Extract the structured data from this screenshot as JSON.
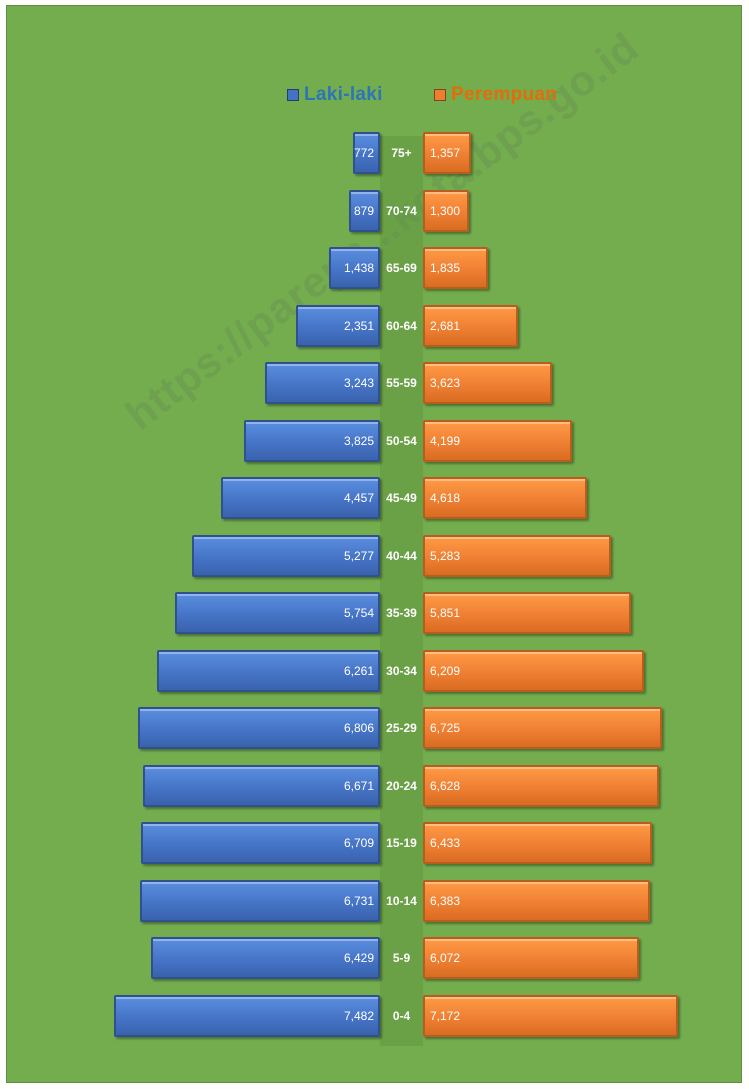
{
  "legend": {
    "male_label": "Laki-laki",
    "female_label": "Perempuan",
    "male_color": "#4472c4",
    "female_color": "#ed7d31",
    "male_text_color": "#2e75b6",
    "female_text_color": "#e46c0a"
  },
  "watermark": "https://parepa...kota.bps.go.id",
  "chart_data": {
    "type": "bar",
    "orientation": "horizontal",
    "style": "population-pyramid",
    "categories": [
      "75+",
      "70-74",
      "65-69",
      "60-64",
      "55-59",
      "50-54",
      "45-49",
      "40-44",
      "35-39",
      "30-34",
      "25-29",
      "20-24",
      "15-19",
      "10-14",
      "5-9",
      "0-4"
    ],
    "series": [
      {
        "name": "Laki-laki",
        "color": "#4472c4",
        "values": [
          772,
          879,
          1438,
          2351,
          3243,
          3825,
          4457,
          5277,
          5754,
          6261,
          6806,
          6671,
          6709,
          6731,
          6429,
          7482
        ],
        "labels": [
          "772",
          "879",
          "1,438",
          "2,351",
          "3,243",
          "3,825",
          "4,457",
          "5,277",
          "5,754",
          "6,261",
          "6,806",
          "6,671",
          "6,709",
          "6,731",
          "6,429",
          "7,482"
        ]
      },
      {
        "name": "Perempuan",
        "color": "#ed7d31",
        "values": [
          1357,
          1300,
          1835,
          2681,
          3623,
          4199,
          4618,
          5283,
          5851,
          6209,
          6725,
          6628,
          6433,
          6383,
          6072,
          7172
        ],
        "labels": [
          "1,357",
          "1,300",
          "1,835",
          "2,681",
          "3,623",
          "4,199",
          "4,618",
          "5,283",
          "5,851",
          "6,209",
          "6,725",
          "6,628",
          "6,433",
          "6,383",
          "6,072",
          "7,172"
        ]
      }
    ],
    "legend_position": "top-center",
    "background": "#73ad4e",
    "grid": false
  }
}
